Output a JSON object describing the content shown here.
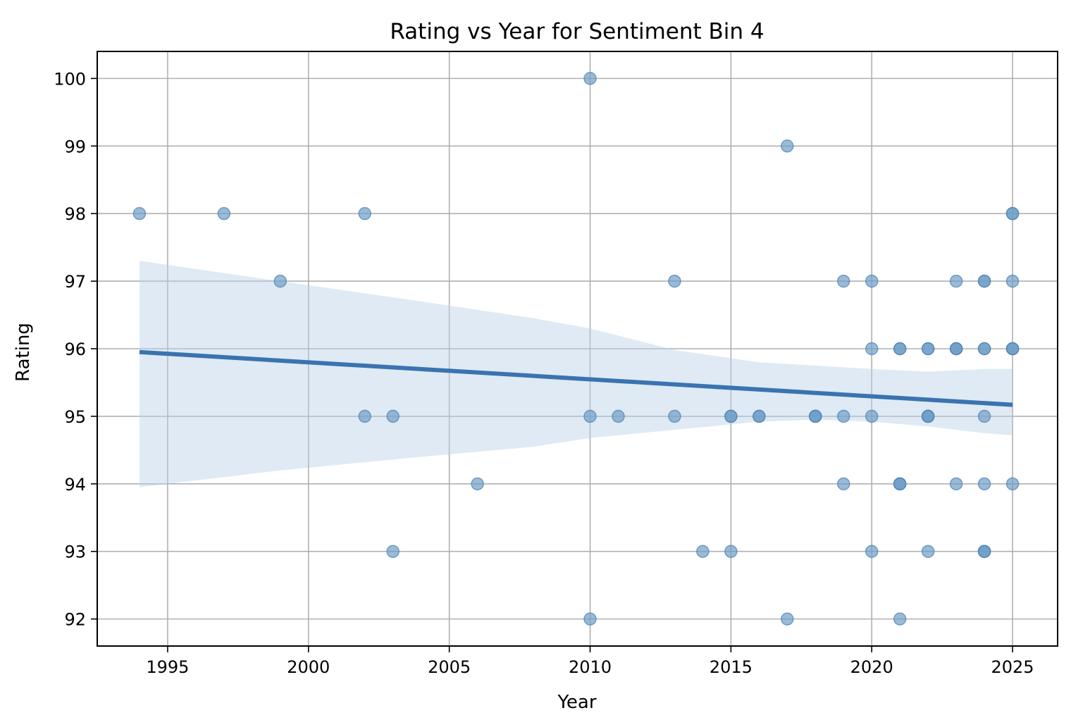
{
  "chart_data": {
    "type": "scatter",
    "title": "Rating vs Year for Sentiment Bin 4",
    "xlabel": "Year",
    "ylabel": "Rating",
    "xlim": [
      1992.5,
      2026.6
    ],
    "ylim": [
      91.6,
      100.4
    ],
    "x_ticks": [
      1995,
      2000,
      2005,
      2010,
      2015,
      2020,
      2025
    ],
    "y_ticks": [
      92,
      93,
      94,
      95,
      96,
      97,
      98,
      99,
      100
    ],
    "grid": true,
    "colors": {
      "points": "#6f9ec7",
      "regression_line": "#3a73b0",
      "confidence_band": "#b9d0e6"
    },
    "points": [
      {
        "x": 1994,
        "y": 98
      },
      {
        "x": 1997,
        "y": 98
      },
      {
        "x": 2002,
        "y": 98
      },
      {
        "x": 2025,
        "y": 98
      },
      {
        "x": 2025,
        "y": 98
      },
      {
        "x": 2010,
        "y": 100
      },
      {
        "x": 2017,
        "y": 99
      },
      {
        "x": 1999,
        "y": 97
      },
      {
        "x": 2013,
        "y": 97
      },
      {
        "x": 2019,
        "y": 97
      },
      {
        "x": 2020,
        "y": 97
      },
      {
        "x": 2023,
        "y": 97
      },
      {
        "x": 2024,
        "y": 97
      },
      {
        "x": 2024,
        "y": 97
      },
      {
        "x": 2025,
        "y": 97
      },
      {
        "x": 2020,
        "y": 96
      },
      {
        "x": 2021,
        "y": 96
      },
      {
        "x": 2021,
        "y": 96
      },
      {
        "x": 2022,
        "y": 96
      },
      {
        "x": 2022,
        "y": 96
      },
      {
        "x": 2023,
        "y": 96
      },
      {
        "x": 2023,
        "y": 96
      },
      {
        "x": 2023,
        "y": 96
      },
      {
        "x": 2024,
        "y": 96
      },
      {
        "x": 2024,
        "y": 96
      },
      {
        "x": 2025,
        "y": 96
      },
      {
        "x": 2025,
        "y": 96
      },
      {
        "x": 2025,
        "y": 96
      },
      {
        "x": 2002,
        "y": 95
      },
      {
        "x": 2003,
        "y": 95
      },
      {
        "x": 2010,
        "y": 95
      },
      {
        "x": 2011,
        "y": 95
      },
      {
        "x": 2013,
        "y": 95
      },
      {
        "x": 2015,
        "y": 95
      },
      {
        "x": 2015,
        "y": 95
      },
      {
        "x": 2016,
        "y": 95
      },
      {
        "x": 2016,
        "y": 95
      },
      {
        "x": 2018,
        "y": 95
      },
      {
        "x": 2018,
        "y": 95
      },
      {
        "x": 2018,
        "y": 95
      },
      {
        "x": 2019,
        "y": 95
      },
      {
        "x": 2020,
        "y": 95
      },
      {
        "x": 2022,
        "y": 95
      },
      {
        "x": 2022,
        "y": 95
      },
      {
        "x": 2022,
        "y": 95
      },
      {
        "x": 2024,
        "y": 95
      },
      {
        "x": 2006,
        "y": 94
      },
      {
        "x": 2019,
        "y": 94
      },
      {
        "x": 2021,
        "y": 94
      },
      {
        "x": 2021,
        "y": 94
      },
      {
        "x": 2021,
        "y": 94
      },
      {
        "x": 2023,
        "y": 94
      },
      {
        "x": 2024,
        "y": 94
      },
      {
        "x": 2025,
        "y": 94
      },
      {
        "x": 2003,
        "y": 93
      },
      {
        "x": 2014,
        "y": 93
      },
      {
        "x": 2015,
        "y": 93
      },
      {
        "x": 2020,
        "y": 93
      },
      {
        "x": 2022,
        "y": 93
      },
      {
        "x": 2024,
        "y": 93
      },
      {
        "x": 2024,
        "y": 93
      },
      {
        "x": 2024,
        "y": 93
      },
      {
        "x": 2010,
        "y": 92
      },
      {
        "x": 2017,
        "y": 92
      },
      {
        "x": 2021,
        "y": 92
      }
    ],
    "regression": {
      "x": [
        1994,
        2025
      ],
      "y": [
        95.95,
        95.17
      ]
    },
    "confidence_band": {
      "x": [
        1994,
        1999,
        2004,
        2008,
        2010,
        2013,
        2016,
        2018,
        2020,
        2022,
        2024,
        2025
      ],
      "upper": [
        97.3,
        97.0,
        96.7,
        96.45,
        96.3,
        95.98,
        95.8,
        95.75,
        95.7,
        95.66,
        95.7,
        95.7
      ],
      "lower": [
        93.95,
        94.2,
        94.4,
        94.55,
        94.68,
        94.8,
        94.92,
        94.95,
        94.92,
        94.85,
        94.75,
        94.72
      ]
    }
  }
}
